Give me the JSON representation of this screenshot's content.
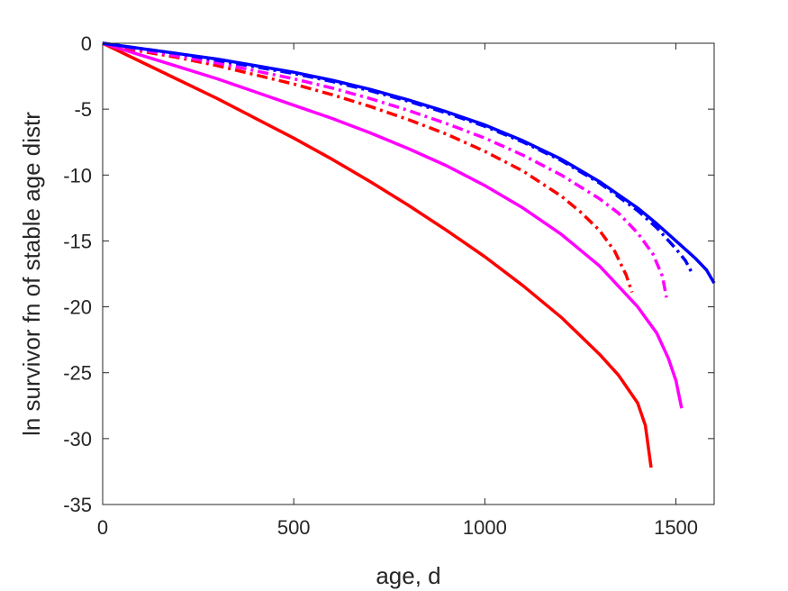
{
  "chart_data": {
    "type": "line",
    "title": "",
    "xlabel": "age, d",
    "ylabel": "ln survivor fn of stable age distr",
    "xlim": [
      0,
      1600
    ],
    "ylim": [
      -35,
      0
    ],
    "xticks": [
      0,
      500,
      1000,
      1500
    ],
    "yticks": [
      0,
      -5,
      -10,
      -15,
      -20,
      -25,
      -30,
      -35
    ],
    "xtick_labels": [
      "0",
      "500",
      "1000",
      "1500"
    ],
    "ytick_labels": [
      "0",
      "-5",
      "-10",
      "-15",
      "-20",
      "-25",
      "-30",
      "-35"
    ],
    "grid": false,
    "legend": "none",
    "series": [
      {
        "color": "#ff0000",
        "style": "solid",
        "x": [
          0,
          100,
          200,
          300,
          400,
          500,
          600,
          700,
          800,
          900,
          1000,
          1100,
          1200,
          1300,
          1350,
          1400,
          1420,
          1435
        ],
        "y": [
          0,
          -1.4,
          -2.8,
          -4.2,
          -5.7,
          -7.2,
          -8.8,
          -10.5,
          -12.3,
          -14.2,
          -16.2,
          -18.4,
          -20.8,
          -23.6,
          -25.2,
          -27.3,
          -29.0,
          -32.2
        ]
      },
      {
        "color": "#ff00ff",
        "style": "solid",
        "x": [
          0,
          100,
          200,
          300,
          400,
          500,
          600,
          700,
          800,
          900,
          1000,
          1100,
          1200,
          1300,
          1400,
          1450,
          1480,
          1500,
          1515
        ],
        "y": [
          0,
          -0.9,
          -1.8,
          -2.7,
          -3.7,
          -4.7,
          -5.7,
          -6.8,
          -8.0,
          -9.3,
          -10.8,
          -12.5,
          -14.5,
          -16.9,
          -20.0,
          -22.0,
          -23.9,
          -25.6,
          -27.7
        ]
      },
      {
        "color": "#ff0000",
        "style": "dashdot",
        "x": [
          0,
          100,
          200,
          300,
          400,
          500,
          600,
          700,
          800,
          900,
          1000,
          1100,
          1200,
          1250,
          1300,
          1340,
          1370,
          1385
        ],
        "y": [
          0,
          -0.6,
          -1.1,
          -1.7,
          -2.4,
          -3.1,
          -3.9,
          -4.8,
          -5.8,
          -6.9,
          -8.2,
          -9.7,
          -11.6,
          -12.8,
          -14.2,
          -15.8,
          -17.6,
          -18.9
        ]
      },
      {
        "color": "#ff00ff",
        "style": "dashdot",
        "x": [
          0,
          100,
          200,
          300,
          400,
          500,
          600,
          700,
          800,
          900,
          1000,
          1100,
          1200,
          1300,
          1350,
          1400,
          1440,
          1465,
          1475
        ],
        "y": [
          0,
          -0.5,
          -1.0,
          -1.5,
          -2.1,
          -2.7,
          -3.4,
          -4.2,
          -5.1,
          -6.1,
          -7.2,
          -8.5,
          -10.0,
          -11.8,
          -12.9,
          -14.4,
          -16.0,
          -17.7,
          -19.3
        ]
      },
      {
        "color": "#0000ff",
        "style": "dashdot",
        "x": [
          0,
          100,
          200,
          300,
          400,
          500,
          600,
          700,
          800,
          900,
          1000,
          1100,
          1200,
          1300,
          1400,
          1450,
          1500,
          1525,
          1545
        ],
        "y": [
          0,
          -0.4,
          -0.8,
          -1.3,
          -1.8,
          -2.3,
          -2.9,
          -3.6,
          -4.4,
          -5.3,
          -6.3,
          -7.5,
          -8.9,
          -10.6,
          -12.7,
          -14.0,
          -15.6,
          -16.5,
          -17.6
        ]
      },
      {
        "color": "#0000ff",
        "style": "solid",
        "x": [
          0,
          100,
          200,
          300,
          400,
          500,
          600,
          700,
          800,
          900,
          1000,
          1100,
          1200,
          1300,
          1400,
          1450,
          1500,
          1550,
          1580,
          1600
        ],
        "y": [
          0,
          -0.4,
          -0.8,
          -1.2,
          -1.7,
          -2.2,
          -2.8,
          -3.5,
          -4.3,
          -5.2,
          -6.2,
          -7.4,
          -8.8,
          -10.5,
          -12.5,
          -13.7,
          -15.0,
          -16.3,
          -17.2,
          -18.2
        ]
      }
    ]
  }
}
